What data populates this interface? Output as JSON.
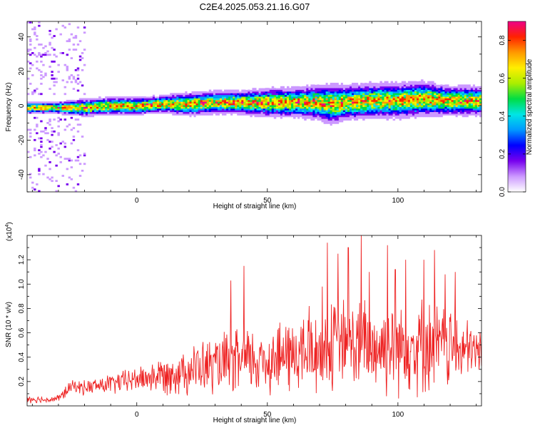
{
  "title": "C2E4.2025.053.21.16.G07",
  "chart_data": [
    {
      "type": "heatmap",
      "xlabel": "Height of straight line (km)",
      "ylabel": "Frequency (Hz)",
      "xlim": [
        -42,
        132
      ],
      "ylim": [
        -50,
        49
      ],
      "xticks": [
        0,
        50,
        100
      ],
      "yticks": [
        -40,
        -20,
        0,
        20,
        40
      ],
      "ridge": {
        "x": [
          -42,
          -30,
          -20,
          -10,
          0,
          10,
          20,
          30,
          40,
          50,
          60,
          70,
          75,
          80,
          90,
          100,
          110,
          120,
          130
        ],
        "frequency": [
          -1,
          -1,
          -1,
          0,
          0,
          1,
          1,
          2,
          2,
          2,
          2,
          2,
          1,
          2,
          3,
          3,
          4,
          3,
          3
        ],
        "spread": [
          2,
          2,
          3,
          3,
          3,
          3,
          4,
          4,
          4,
          5,
          5,
          6,
          7,
          6,
          6,
          6,
          6,
          5,
          5
        ]
      },
      "colorbar": {
        "label": "Normalized spectral amplitude",
        "range": [
          0.0,
          0.9
        ],
        "ticks": [
          "0.0",
          "0.2",
          "0.4",
          "0.6",
          "0.8"
        ],
        "colors": [
          "#ffffff",
          "#cc99ff",
          "#7700ee",
          "#0000ff",
          "#0099ff",
          "#00e5e5",
          "#00dd44",
          "#aaee00",
          "#ffee00",
          "#ff9900",
          "#ff2200",
          "#ee0088"
        ]
      }
    },
    {
      "type": "line",
      "xlabel": "Height of straight line (km)",
      "ylabel": "SNR (10 * v/v)",
      "scale_note": [
        "(x10",
        "4",
        ")"
      ],
      "xlim": [
        -42,
        132
      ],
      "ylim": [
        0,
        1.4
      ],
      "xticks": [
        0,
        50,
        100
      ],
      "yticks": [
        "0.2",
        "0.4",
        "0.6",
        "0.8",
        "1.0",
        "1.2"
      ],
      "series_color": "#ee2222",
      "envelope": {
        "x": [
          -42,
          -35,
          -30,
          -27,
          -25,
          -20,
          -10,
          0,
          10,
          20,
          30,
          40,
          50,
          60,
          70,
          80,
          90,
          100,
          110,
          120,
          125,
          132
        ],
        "mean": [
          0.06,
          0.05,
          0.06,
          0.12,
          0.16,
          0.15,
          0.18,
          0.22,
          0.25,
          0.3,
          0.33,
          0.36,
          0.38,
          0.42,
          0.45,
          0.5,
          0.48,
          0.5,
          0.5,
          0.48,
          0.45,
          0.45
        ],
        "swing": [
          0.04,
          0.03,
          0.04,
          0.06,
          0.06,
          0.07,
          0.1,
          0.12,
          0.18,
          0.24,
          0.28,
          0.32,
          0.34,
          0.38,
          0.42,
          0.46,
          0.46,
          0.46,
          0.46,
          0.4,
          0.3,
          0.25
        ]
      },
      "peaks": [
        {
          "x": 36,
          "y": 1.03
        },
        {
          "x": 41,
          "y": 1.15
        },
        {
          "x": 66,
          "y": 0.82
        },
        {
          "x": 71,
          "y": 0.98
        },
        {
          "x": 73,
          "y": 1.34
        },
        {
          "x": 77,
          "y": 1.25
        },
        {
          "x": 81,
          "y": 1.3
        },
        {
          "x": 86,
          "y": 1.4
        },
        {
          "x": 89,
          "y": 1.1
        },
        {
          "x": 96,
          "y": 1.32
        },
        {
          "x": 99,
          "y": 1.12
        },
        {
          "x": 103,
          "y": 1.2
        },
        {
          "x": 110,
          "y": 1.2
        },
        {
          "x": 114,
          "y": 1.28
        },
        {
          "x": 118,
          "y": 1.08
        },
        {
          "x": 122,
          "y": 1.1
        }
      ]
    }
  ]
}
